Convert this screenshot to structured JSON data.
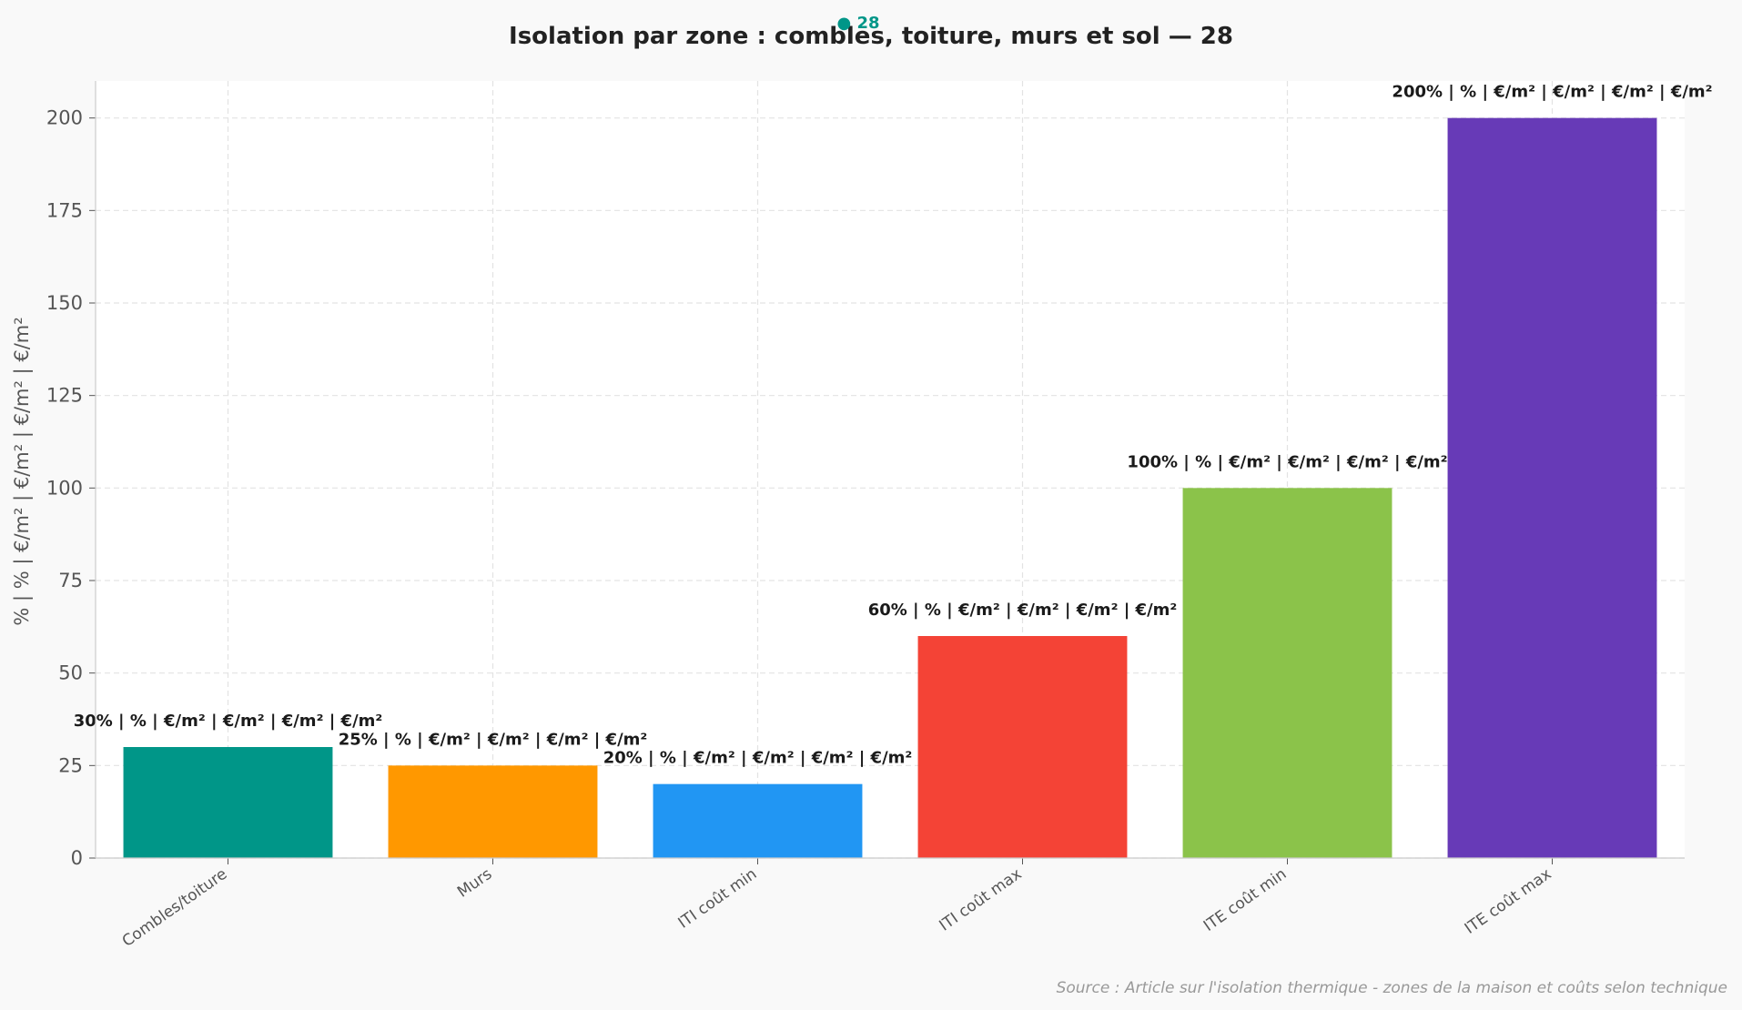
{
  "chart_data": {
    "type": "bar",
    "title": "Isolation par zone : combles, toiture, murs et sol — 28",
    "badge": "● 28",
    "ylabel": "% | % | €/m² | €/m² | €/m² | €/m²",
    "xlabel": "",
    "categories": [
      "Combles/toiture",
      "Murs",
      "ITI coût min",
      "ITI coût max",
      "ITE coût min",
      "ITE coût max"
    ],
    "values": [
      30,
      25,
      20,
      60,
      100,
      200
    ],
    "data_labels": [
      "30% | % | €/m² | €/m² | €/m² | €/m²",
      "25% | % | €/m² | €/m² | €/m² | €/m²",
      "20% | % | €/m² | €/m² | €/m² | €/m²",
      "60% | % | €/m² | €/m² | €/m² | €/m²",
      "100% | % | €/m² | €/m² | €/m² | €/m²",
      "200% | % | €/m² | €/m² | €/m² | €/m²"
    ],
    "colors": [
      "#009688",
      "#FF9800",
      "#2196F3",
      "#F44336",
      "#8BC34A",
      "#673AB7"
    ],
    "yticks": [
      0,
      25,
      50,
      75,
      100,
      125,
      150,
      175,
      200
    ],
    "ylim": [
      0,
      210
    ],
    "grid": true,
    "source": "Source : Article sur l'isolation thermique - zones de la maison et coûts selon technique"
  },
  "colors": {
    "badge": "#009688",
    "background": "#f9f9f9",
    "plot_background": "#ffffff",
    "grid": "#e3e3e3"
  }
}
